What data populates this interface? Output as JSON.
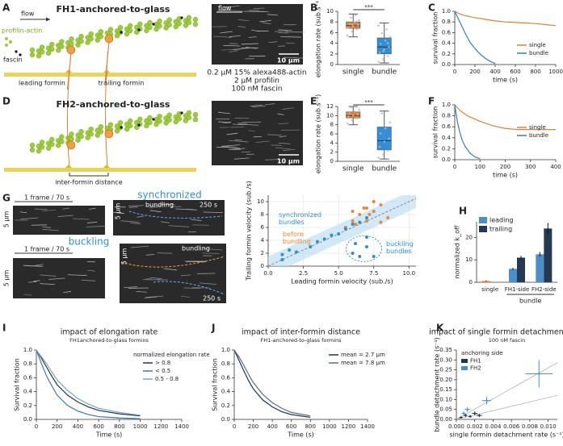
{
  "panels": [
    "A",
    "B",
    "C",
    "D",
    "E",
    "F",
    "G",
    "H",
    "I",
    "J",
    "K"
  ],
  "diagram_a": {
    "title": "FH1-anchored-to-glass",
    "flow": "flow",
    "profilin_actin": "profilin-actin",
    "fascin": "fascin",
    "leading": "leading formin",
    "trailing": "trailing formin"
  },
  "diagram_d": {
    "title": "FH2-anchored-to-glass",
    "distance": "inter-formin distance"
  },
  "image_a": {
    "flow": "flow",
    "scale": "10 µm",
    "caption": [
      "0.2 µM 15% alexa488-actin",
      "2 µM profilin",
      "100 nM fascin"
    ]
  },
  "image_d": {
    "scale": "10 µm"
  },
  "images_g": {
    "sync_frame": "1 frame / 70 s",
    "sync_title": "synchronized",
    "sync_scale": "5 µm",
    "sync_kymo_scale": "5 µm",
    "sync_bundling": "bundling",
    "sync_time": "250 s",
    "buck_frame": "1 frame / 70 s",
    "buck_title": "buckling",
    "buck_scale": "5 µm",
    "buck_kymo_scale": "5 µm",
    "buck_bundling": "bundling",
    "buck_time": "250 s"
  },
  "chart_data": [
    {
      "type": "box",
      "ylabel": "elongation rate (sub.s⁻¹)",
      "categories": [
        "single",
        "bundle"
      ],
      "annotation": "***",
      "boxes": [
        {
          "min": 5.2,
          "q1": 6.8,
          "median": 7.3,
          "q3": 8.0,
          "max": 9.5,
          "color": "#e0823b"
        },
        {
          "min": 0.3,
          "q1": 2.0,
          "median": 3.3,
          "q3": 5.0,
          "max": 7.8,
          "color": "#2f8fd8"
        }
      ],
      "points": [
        [
          5.5,
          6.2,
          6.6,
          7.0,
          7.2,
          7.4,
          7.6,
          7.9,
          8.3,
          8.8,
          9.3,
          6.9,
          7.5,
          8.1
        ],
        [
          0.5,
          1.0,
          1.6,
          2.2,
          2.8,
          3.3,
          3.9,
          4.5,
          5.2,
          5.9,
          6.6,
          7.3,
          2.5,
          4.0
        ]
      ],
      "ylim": [
        0,
        10
      ],
      "yticks": [
        0,
        2,
        4,
        6,
        8,
        10
      ]
    },
    {
      "type": "line",
      "xlabel": "time (s)",
      "ylabel": "survival fraction",
      "series": [
        {
          "name": "single",
          "color": "#e0823b",
          "x": [
            0,
            50,
            100,
            150,
            200,
            300,
            400,
            500,
            600,
            700,
            800,
            900,
            1000
          ],
          "values": [
            1,
            0.95,
            0.92,
            0.9,
            0.88,
            0.85,
            0.82,
            0.8,
            0.79,
            0.78,
            0.77,
            0.75,
            0.73
          ]
        },
        {
          "name": "bundle",
          "color": "#2f7fc1",
          "x": [
            0,
            50,
            100,
            150,
            200,
            250,
            300,
            350,
            400
          ],
          "values": [
            1,
            0.8,
            0.6,
            0.42,
            0.3,
            0.2,
            0.12,
            0.06,
            0.02
          ]
        }
      ],
      "xlim": [
        0,
        1000
      ],
      "xticks": [
        0,
        200,
        400,
        600,
        800,
        1000
      ],
      "ylim": [
        0,
        1
      ],
      "yticks": [
        {
          "value": 0,
          "label": "0.0"
        },
        0.2,
        0.4,
        0.6,
        0.8,
        {
          "value": 1,
          "label": "1.0"
        }
      ],
      "legend": "lower right"
    },
    {
      "type": "box",
      "ylabel": "elongation rate (sub.s⁻¹)",
      "categories": [
        "single",
        "bundle"
      ],
      "annotation": "***",
      "boxes": [
        {
          "min": 8.0,
          "q1": 9.5,
          "median": 10.0,
          "q3": 10.8,
          "max": 12.0,
          "color": "#e0823b"
        },
        {
          "min": 0.5,
          "q1": 2.5,
          "median": 4.5,
          "q3": 7.5,
          "max": 11.0,
          "color": "#2f8fd8"
        }
      ],
      "points": [
        [
          8.3,
          9.0,
          9.4,
          9.8,
          10.0,
          10.2,
          10.5,
          10.9,
          11.3,
          11.8
        ],
        [
          0.8,
          1.5,
          2.3,
          3.2,
          4.3,
          5.0,
          6.1,
          7.2,
          8.5,
          10.5
        ]
      ],
      "ylim": [
        0,
        12
      ],
      "yticks": [
        0,
        2,
        4,
        6,
        8,
        10,
        12
      ]
    },
    {
      "type": "line",
      "xlabel": "time (s)",
      "ylabel": "survival fraction",
      "series": [
        {
          "name": "single",
          "color": "#e0823b",
          "x": [
            0,
            20,
            50,
            100,
            150,
            200,
            250,
            300,
            350,
            400
          ],
          "values": [
            1,
            0.9,
            0.8,
            0.7,
            0.62,
            0.57,
            0.55,
            0.55,
            0.55,
            0.55
          ]
        },
        {
          "name": "bundle",
          "color": "#2f7fc1",
          "x": [
            0,
            10,
            20,
            30,
            40,
            60,
            80,
            100
          ],
          "values": [
            1,
            0.7,
            0.5,
            0.35,
            0.25,
            0.12,
            0.05,
            0.02
          ]
        }
      ],
      "xlim": [
        0,
        400
      ],
      "xticks": [
        0,
        100,
        200,
        300,
        400
      ],
      "ylim": [
        0,
        1
      ],
      "yticks": [
        {
          "value": 0,
          "label": "0.0"
        },
        0.2,
        0.4,
        0.6,
        0.8,
        {
          "value": 1,
          "label": "1.0"
        }
      ],
      "legend": "right"
    },
    {
      "type": "scatter",
      "xlabel": "Leading formin velocity (sub./s)",
      "ylabel": "Trailing formin velocity (sub./s)",
      "series": [
        {
          "color": "#e8883a",
          "x": [
            5.5,
            6,
            6.5,
            7,
            7.5,
            6.2,
            7,
            7.5,
            8,
            6.8,
            8.5,
            7.2,
            6,
            8
          ],
          "values": [
            6,
            7,
            8,
            9,
            10,
            6.5,
            7,
            8.5,
            9.5,
            9,
            7.5,
            8,
            8.5,
            6.8
          ]
        },
        {
          "color": "#2f8fd0",
          "x": [
            1,
            1.5,
            2,
            3,
            3.5,
            4,
            4.5,
            5,
            5.5,
            6,
            6.5,
            7,
            6,
            6.5,
            7,
            7.5,
            6.2,
            7,
            1
          ],
          "values": [
            1.8,
            2.5,
            2.2,
            3,
            3.8,
            4.2,
            4.8,
            5,
            5.8,
            6.5,
            6.8,
            7.5,
            2,
            1.5,
            3,
            1.5,
            3.5,
            4.5,
            1
          ]
        }
      ],
      "annotations": [
        {
          "text": "before\nbundling",
          "color": "#e8883a"
        },
        {
          "text": "synchronized\nbundles",
          "color": "#2f8fd0"
        },
        {
          "text": "buckling\nbundles",
          "color": "#2f8fd0"
        }
      ],
      "xlim": [
        0,
        10.5
      ],
      "xticks": [
        {
          "value": 0,
          "label": "0.0"
        },
        2.5,
        {
          "value": 5,
          "label": "5.0"
        },
        7.5,
        {
          "value": 10,
          "label": "10.0"
        }
      ],
      "ylim": [
        0,
        11
      ],
      "yticks": [
        0,
        2,
        4,
        6,
        8,
        10
      ],
      "grid": true
    },
    {
      "type": "bar",
      "ylabel": "normalized k_off",
      "categories": [
        "single",
        "FH1-side",
        "FH2-side"
      ],
      "bracket": "bundle",
      "series": [
        {
          "name": "leading",
          "color": "#4a8fc9",
          "colors": [
            "#e8833a",
            "#4a8fc9",
            "#4a8fc9"
          ],
          "values": [
            0.6,
            6,
            12.5
          ],
          "errors": [
            0.2,
            0.5,
            1
          ]
        },
        {
          "name": "trailing",
          "color": "#253a52",
          "values": [
            null,
            11,
            24
          ],
          "errors": [
            null,
            0.8,
            2.5
          ]
        }
      ],
      "ylim": [
        0,
        27
      ],
      "yticks": [
        0,
        10,
        20
      ],
      "legend": "upper left"
    },
    {
      "type": "line",
      "title": "impact of elongation rate",
      "subtitle": "FH1anchored-to-glass formins",
      "legend_title": "normalized elongation rate",
      "xlabel": "Time (s)",
      "ylabel": "Survival fraction",
      "series": [
        {
          "name": "> 0.8",
          "color": "#1f3550",
          "x": [
            0,
            50,
            100,
            150,
            200,
            300,
            400,
            500,
            600,
            800,
            1000
          ],
          "values": [
            1,
            0.88,
            0.75,
            0.62,
            0.5,
            0.35,
            0.25,
            0.18,
            0.13,
            0.08,
            0.05
          ]
        },
        {
          "name": "< 0.5",
          "color": "#3b78b8",
          "x": [
            0,
            50,
            100,
            150,
            200,
            300,
            400,
            500,
            600,
            800,
            1000
          ],
          "values": [
            1,
            0.8,
            0.62,
            0.48,
            0.35,
            0.2,
            0.12,
            0.07,
            0.04,
            0.02,
            0.01
          ]
        },
        {
          "name": "0.5 - 0.8",
          "color": "#7fa6cc",
          "x": [
            0,
            50,
            100,
            150,
            200,
            300,
            400,
            500,
            600,
            800,
            1000
          ],
          "values": [
            1,
            0.9,
            0.8,
            0.68,
            0.57,
            0.42,
            0.3,
            0.22,
            0.16,
            0.1,
            0.06
          ]
        }
      ],
      "xlim": [
        0,
        1400
      ],
      "xticks": [
        0,
        200,
        400,
        600,
        800,
        1000,
        1200,
        1400
      ],
      "ylim": [
        0,
        1
      ],
      "yticks": [
        {
          "value": 0,
          "label": "0.0"
        },
        0.2,
        0.4,
        0.6,
        0.8,
        {
          "value": 1,
          "label": "1.0"
        }
      ],
      "legend": "upper right"
    },
    {
      "type": "line",
      "title": "impact of inter-formin distance",
      "subtitle": "FH1-anchored-to-glass formins",
      "xlabel": "Time (s)",
      "ylabel": "Survival fraction",
      "series": [
        {
          "name": "mean = 2.7 µm",
          "color": "#1f3550",
          "x": [
            0,
            50,
            100,
            150,
            200,
            300,
            400,
            500,
            600,
            800
          ],
          "values": [
            1,
            0.85,
            0.7,
            0.56,
            0.44,
            0.28,
            0.18,
            0.11,
            0.07,
            0.03
          ]
        },
        {
          "name": "mean = 7.8 µm",
          "color": "#5b6f86",
          "x": [
            0,
            50,
            100,
            150,
            200,
            300,
            400,
            500,
            600,
            800
          ],
          "values": [
            1,
            0.9,
            0.78,
            0.65,
            0.53,
            0.36,
            0.24,
            0.16,
            0.1,
            0.05
          ]
        }
      ],
      "xlim": [
        0,
        1400
      ],
      "xticks": [
        0,
        200,
        400,
        600,
        800,
        1000,
        1200,
        1400
      ],
      "ylim": [
        0,
        1
      ],
      "yticks": [
        {
          "value": 0,
          "label": "0.0"
        },
        0.2,
        0.4,
        0.6,
        0.8,
        {
          "value": 1,
          "label": "1.0"
        }
      ],
      "legend": "upper right"
    },
    {
      "type": "scatter",
      "title": "impact of single formin detachment rate",
      "subtitle": "100 nM fascin",
      "legend_title": "anchoring side",
      "xlabel": "single formin detachment rate (s⁻¹)",
      "ylabel": "bundle detachment rate (s⁻¹)",
      "series": [
        {
          "name": "FH1",
          "color": "#1f3550",
          "x": [
            0.0005,
            0.001,
            0.0015,
            0.002,
            0.0025
          ],
          "values": [
            0.01,
            0.02,
            0.015,
            0.03,
            0.02
          ],
          "xerr": [
            0.0002,
            0.0002,
            0.0002,
            0.0003,
            0.0003
          ],
          "yerr": [
            0.005,
            0.008,
            0.006,
            0.01,
            0.008
          ]
        },
        {
          "name": "FH2",
          "color": "#4a8fc9",
          "x": [
            0.0008,
            0.0012,
            0.0033,
            0.009
          ],
          "values": [
            0.03,
            0.05,
            0.095,
            0.23
          ],
          "xerr": [
            0.0002,
            0.0003,
            0.0005,
            0.0015
          ],
          "yerr": [
            0.01,
            0.012,
            0.02,
            0.07
          ]
        }
      ],
      "reference_lines": [
        {
          "slope": 26
        },
        {
          "slope": 11
        }
      ],
      "xlim": [
        0,
        0.011
      ],
      "xticks": [
        {
          "value": 0,
          "label": "0.000"
        },
        0.002,
        0.004,
        0.006,
        0.008,
        {
          "value": 0.01,
          "label": "0.010"
        }
      ],
      "ylim": [
        0,
        0.35
      ],
      "yticks": [
        {
          "value": 0,
          "label": "0.00"
        },
        0.05,
        {
          "value": 0.1,
          "label": "0.10"
        },
        0.15,
        {
          "value": 0.2,
          "label": "0.20"
        },
        0.25,
        {
          "value": 0.3,
          "label": "0.30"
        },
        0.35
      ],
      "legend": "upper left"
    }
  ]
}
